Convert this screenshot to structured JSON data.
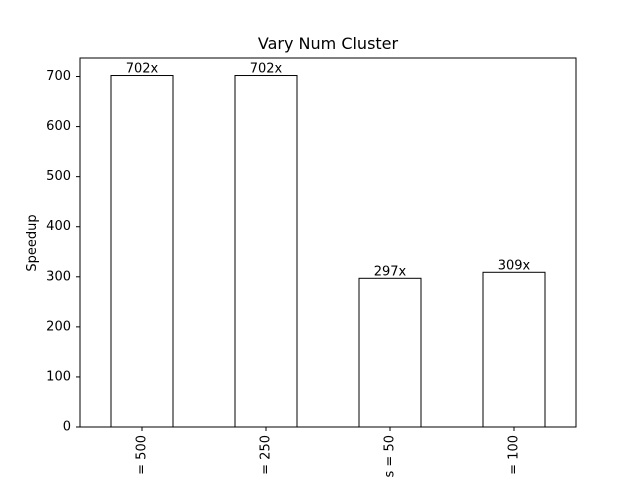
{
  "chart_data": {
    "type": "bar",
    "title": "Vary Num Cluster",
    "xlabel": "",
    "ylabel": "Speedup",
    "categories": [
      "= 500",
      "= 250",
      "s = 50",
      "= 100"
    ],
    "values": [
      702,
      702,
      297,
      309
    ],
    "data_labels": [
      "702x",
      "702x",
      "297x",
      "309x"
    ],
    "ylim": [
      0,
      737
    ],
    "yticks": [
      0,
      100,
      200,
      300,
      400,
      500,
      600,
      700
    ],
    "grid": false,
    "legend": "none",
    "bar_fill": "#ffffff",
    "bar_edge": "#000000"
  }
}
